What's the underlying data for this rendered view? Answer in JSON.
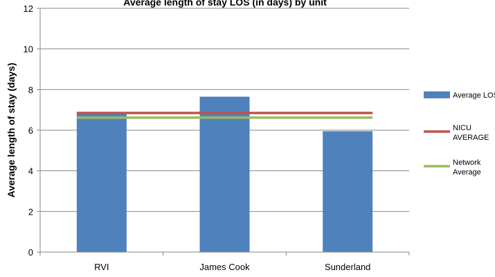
{
  "chart_data": {
    "type": "bar",
    "title": "",
    "title_partial": "Average length of stay LOS (in days) by unit",
    "categories": [
      "RVI",
      "James Cook",
      "Sunderland"
    ],
    "series": [
      {
        "name": "Average LOS",
        "color": "#4F81BD",
        "values": [
          6.8,
          7.65,
          5.95
        ]
      }
    ],
    "reference_lines": [
      {
        "name": "NICU AVERAGE",
        "name_lines": [
          "NICU",
          "AVERAGE"
        ],
        "color": "#C0504D",
        "value": 6.85
      },
      {
        "name": "Network Average",
        "name_lines": [
          "Network",
          "Average"
        ],
        "color": "#9BBB59",
        "value": 6.62
      }
    ],
    "ylabel": "Average length of stay (days)",
    "xlabel": "",
    "ylim": [
      0,
      12
    ],
    "yticks": [
      0,
      2,
      4,
      6,
      8,
      10,
      12
    ],
    "grid": true,
    "legend_position": "right"
  }
}
